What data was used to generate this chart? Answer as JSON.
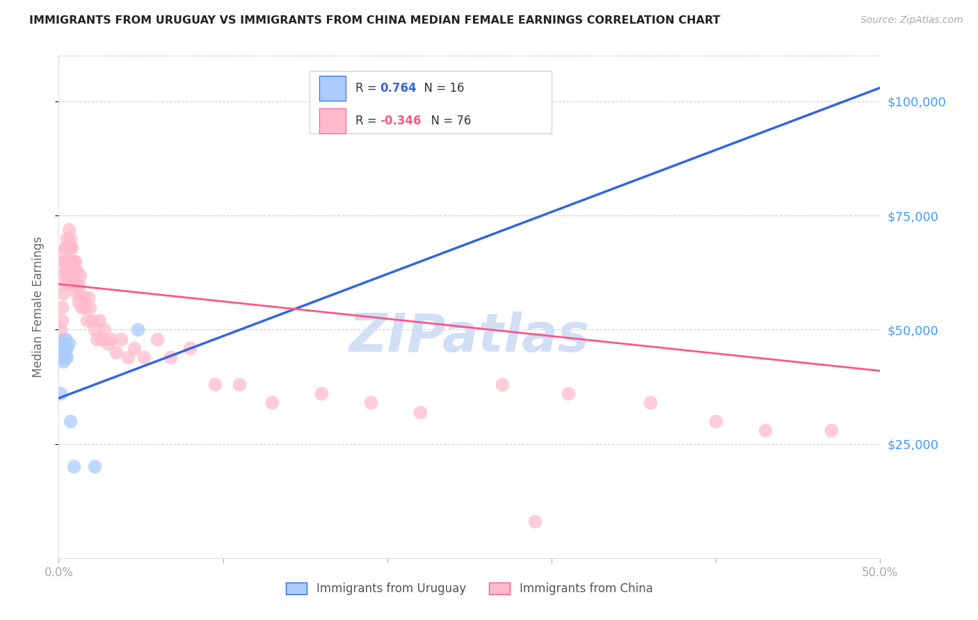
{
  "title": "IMMIGRANTS FROM URUGUAY VS IMMIGRANTS FROM CHINA MEDIAN FEMALE EARNINGS CORRELATION CHART",
  "source": "Source: ZipAtlas.com",
  "ylabel": "Median Female Earnings",
  "ytick_labels": [
    "$25,000",
    "$50,000",
    "$75,000",
    "$100,000"
  ],
  "ytick_values": [
    25000,
    50000,
    75000,
    100000
  ],
  "ymin": 0,
  "ymax": 110000,
  "xmin": 0.0,
  "xmax": 0.5,
  "legend_r_uruguay": "0.764",
  "legend_n_uruguay": "16",
  "legend_r_china": "-0.346",
  "legend_n_china": "76",
  "color_uruguay": "#aaccff",
  "color_china": "#ffbbcc",
  "line_color_uruguay": "#3366dd",
  "line_color_china": "#ff5588",
  "watermark": "ZIPatlas",
  "watermark_color": "#d0dff5",
  "uruguay_x": [
    0.001,
    0.002,
    0.002,
    0.003,
    0.003,
    0.003,
    0.004,
    0.004,
    0.004,
    0.005,
    0.005,
    0.006,
    0.007,
    0.009,
    0.022,
    0.048
  ],
  "uruguay_y": [
    36000,
    44000,
    46000,
    43000,
    45000,
    47000,
    44000,
    46000,
    48000,
    44000,
    46000,
    47000,
    30000,
    20000,
    20000,
    50000
  ],
  "china_x": [
    0.001,
    0.001,
    0.002,
    0.002,
    0.002,
    0.003,
    0.003,
    0.003,
    0.003,
    0.004,
    0.004,
    0.004,
    0.004,
    0.005,
    0.005,
    0.005,
    0.005,
    0.006,
    0.006,
    0.006,
    0.006,
    0.007,
    0.007,
    0.007,
    0.007,
    0.007,
    0.008,
    0.008,
    0.008,
    0.009,
    0.009,
    0.01,
    0.01,
    0.01,
    0.011,
    0.011,
    0.011,
    0.012,
    0.012,
    0.013,
    0.013,
    0.014,
    0.015,
    0.016,
    0.017,
    0.018,
    0.019,
    0.02,
    0.022,
    0.023,
    0.025,
    0.026,
    0.028,
    0.03,
    0.032,
    0.035,
    0.038,
    0.042,
    0.046,
    0.052,
    0.06,
    0.068,
    0.08,
    0.095,
    0.11,
    0.13,
    0.16,
    0.19,
    0.22,
    0.27,
    0.31,
    0.36,
    0.4,
    0.43,
    0.47,
    0.29
  ],
  "china_y": [
    47000,
    50000,
    48000,
    52000,
    55000,
    58000,
    62000,
    65000,
    67000,
    60000,
    63000,
    65000,
    68000,
    63000,
    65000,
    68000,
    70000,
    62000,
    65000,
    68000,
    72000,
    60000,
    63000,
    65000,
    68000,
    70000,
    63000,
    65000,
    68000,
    62000,
    65000,
    60000,
    63000,
    65000,
    58000,
    60000,
    63000,
    56000,
    60000,
    58000,
    62000,
    55000,
    57000,
    55000,
    52000,
    57000,
    55000,
    52000,
    50000,
    48000,
    52000,
    48000,
    50000,
    47000,
    48000,
    45000,
    48000,
    44000,
    46000,
    44000,
    48000,
    44000,
    46000,
    38000,
    38000,
    34000,
    36000,
    34000,
    32000,
    38000,
    36000,
    34000,
    30000,
    28000,
    28000,
    8000
  ]
}
